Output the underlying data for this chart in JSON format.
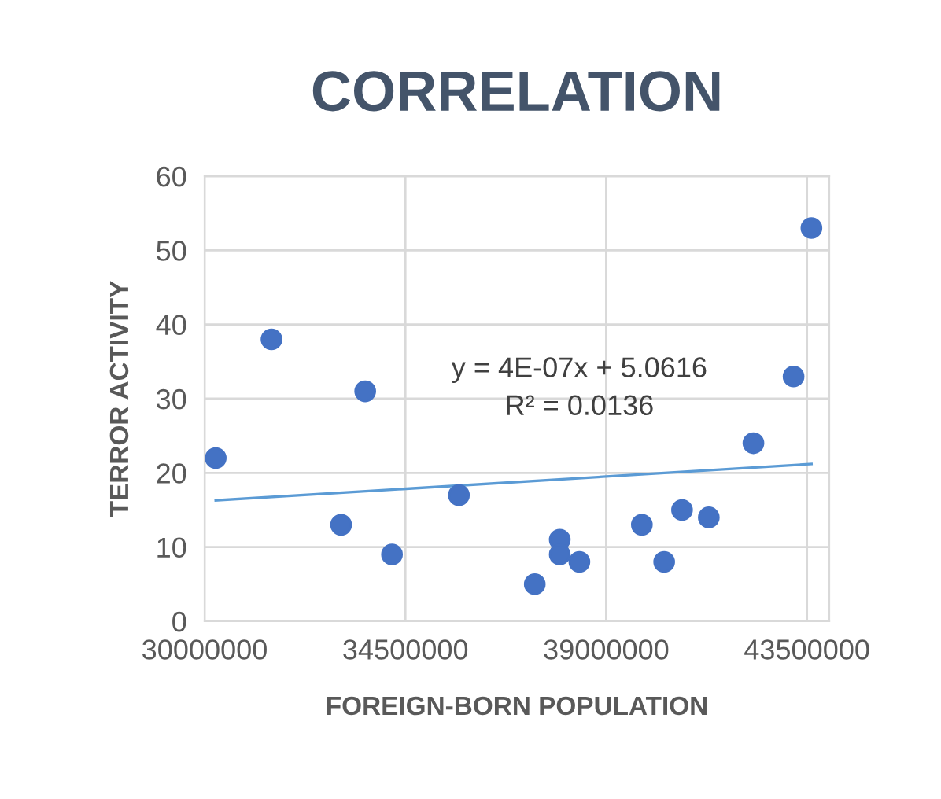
{
  "chart_data": {
    "type": "scatter",
    "title": "CORRELATION",
    "xlabel": "FOREIGN-BORN POPULATION",
    "ylabel": "TERROR ACTIVITY",
    "xlim": [
      30000000,
      44000000
    ],
    "xticks": [
      30000000,
      34500000,
      39000000,
      43500000
    ],
    "ylim": [
      0,
      60
    ],
    "yticks": [
      0,
      10,
      20,
      30,
      40,
      50,
      60
    ],
    "grid": true,
    "series": [
      {
        "marker": "circle",
        "color": "#4472c4",
        "x": [
          30250000,
          31500000,
          33060000,
          33600000,
          34200000,
          35700000,
          37400000,
          37960000,
          37960000,
          38400000,
          39800000,
          40300000,
          40700000,
          41300000,
          42300000,
          43200000,
          43600000
        ],
        "values": [
          22,
          38,
          13,
          31,
          9,
          17,
          5,
          11,
          9,
          8,
          13,
          8,
          15,
          14,
          24,
          33,
          53
        ]
      },
      {
        "type": "line",
        "marker": "none",
        "color": "#5b9bd5",
        "x": [
          30250000,
          43600000
        ],
        "values": [
          16.3,
          21.2
        ]
      }
    ],
    "annotations": [
      "y = 4E-07x + 5.0616",
      "R² = 0.0136"
    ]
  }
}
